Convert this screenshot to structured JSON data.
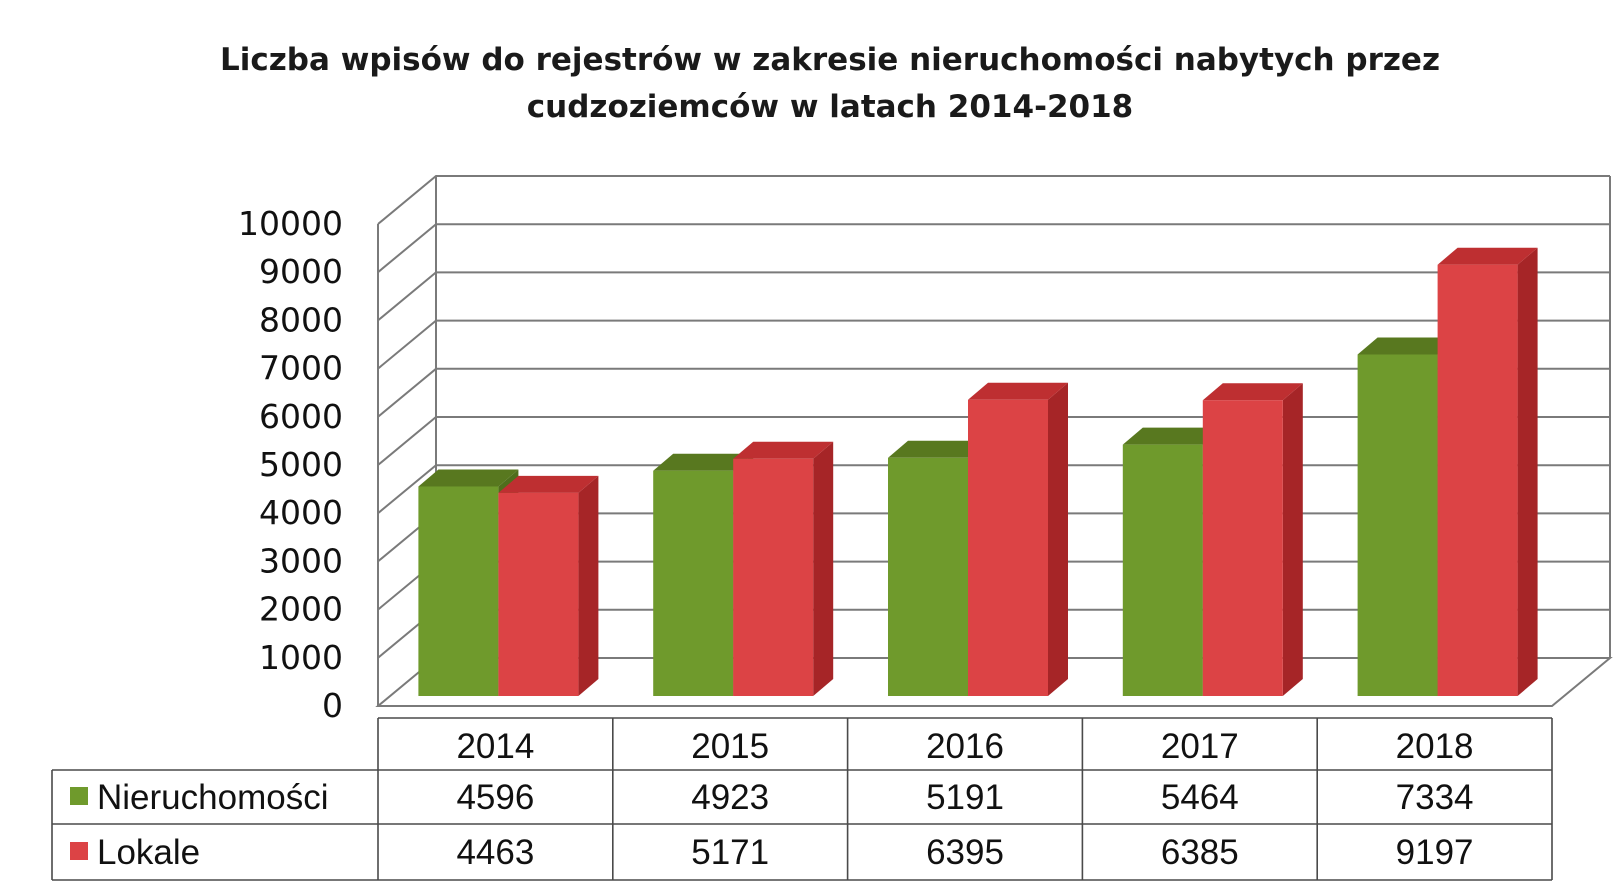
{
  "chart_data": {
    "type": "bar",
    "title_lines": [
      "Liczba wpisów do rejestrów  w zakresie nieruchomości nabytych przez",
      "cudzoziemców w latach 2014-2018"
    ],
    "categories": [
      "2014",
      "2015",
      "2016",
      "2017",
      "2018"
    ],
    "series": [
      {
        "name": "Nieruchomości",
        "values": [
          4596,
          4923,
          5191,
          5464,
          7334
        ],
        "color": "#6f9a2c",
        "dark_color": "#4f6e1c",
        "top_color": "#58781f"
      },
      {
        "name": "Lokale",
        "values": [
          4463,
          5171,
          6395,
          6385,
          9197
        ],
        "color": "#dc4345",
        "dark_color": "#a62527",
        "top_color": "#be2f31"
      }
    ],
    "yticks": [
      "0",
      "1000",
      "2000",
      "3000",
      "4000",
      "5000",
      "6000",
      "7000",
      "8000",
      "9000",
      "10000"
    ],
    "ylim": [
      0,
      10000
    ],
    "grid": true,
    "legend": "data-table",
    "style": "3d-clustered-column"
  }
}
